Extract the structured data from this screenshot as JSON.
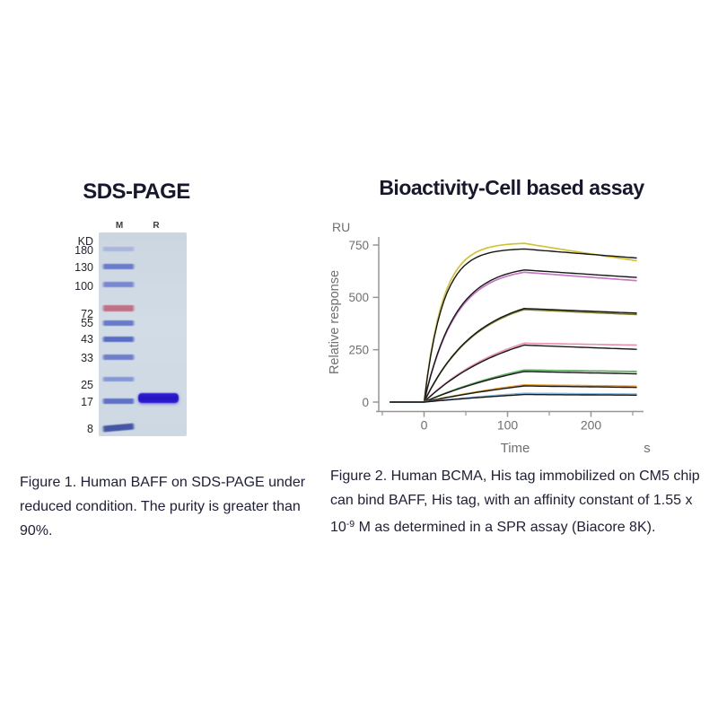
{
  "page": {
    "background": "#ffffff"
  },
  "figure1": {
    "title": "SDS-PAGE",
    "gel": {
      "unit_label": "KD",
      "lane_labels": [
        {
          "text": "M",
          "x": 133
        },
        {
          "text": "R",
          "x": 174
        }
      ],
      "marker_labels": [
        {
          "text": "KD",
          "y": 269
        },
        {
          "text": "180",
          "y": 279
        },
        {
          "text": "130",
          "y": 298
        },
        {
          "text": "100",
          "y": 319
        },
        {
          "text": "72",
          "y": 350
        },
        {
          "text": "55",
          "y": 360
        },
        {
          "text": "43",
          "y": 378
        },
        {
          "text": "33",
          "y": 399
        },
        {
          "text": "25",
          "y": 429
        },
        {
          "text": "17",
          "y": 448
        },
        {
          "text": "8",
          "y": 478
        }
      ],
      "ladder_bands": [
        {
          "kd": "180",
          "y": 277,
          "color": "#98a5da",
          "h": 5,
          "opacity": 0.65,
          "tilt": 0
        },
        {
          "kd": "130",
          "y": 297,
          "color": "#5f72c9",
          "h": 6,
          "opacity": 0.9,
          "tilt": 0
        },
        {
          "kd": "100",
          "y": 317,
          "color": "#6a7bce",
          "h": 5.5,
          "opacity": 0.85,
          "tilt": 0
        },
        {
          "kd": "72",
          "y": 343,
          "color": "#c0677f",
          "h": 7,
          "opacity": 0.92,
          "tilt": 0
        },
        {
          "kd": "55",
          "y": 360,
          "color": "#5d70c8",
          "h": 6,
          "opacity": 0.9,
          "tilt": 0
        },
        {
          "kd": "43",
          "y": 378,
          "color": "#5064c3",
          "h": 6.5,
          "opacity": 0.92,
          "tilt": 0
        },
        {
          "kd": "33",
          "y": 398,
          "color": "#5c6fc7",
          "h": 5.5,
          "opacity": 0.85,
          "tilt": 0
        },
        {
          "kd": "25",
          "y": 422,
          "color": "#6d80d0",
          "h": 5,
          "opacity": 0.75,
          "tilt": 0
        },
        {
          "kd": "17",
          "y": 447,
          "color": "#5366c5",
          "h": 5.5,
          "opacity": 0.9,
          "tilt": 0
        },
        {
          "kd": "8",
          "y": 476,
          "color": "#3e50a2",
          "h": 7,
          "opacity": 0.95,
          "tilt": -5
        }
      ],
      "sample_band": {
        "y": 443,
        "h": 11,
        "color": "#2f1fd8"
      }
    },
    "caption": {
      "line1": "Figure 1. Human BAFF on SDS-PAGE under",
      "line2": "reduced condition. The purity is greater than",
      "line3": "90%."
    }
  },
  "figure2": {
    "title": "Bioactivity-Cell based assay",
    "caption": {
      "line1": "Figure 2. Human BCMA, His tag immobilized on CM5 chip",
      "line2": "can bind BAFF, His tag, with an affinity constant of 1.55 x",
      "line3_pre": "10",
      "line3_sup": "-9",
      "line3_post": " M as determined in a SPR assay (Biacore 8K)."
    }
  },
  "chart_data": {
    "type": "line",
    "subtype": "spr-sensorgram",
    "title": "Bioactivity-Cell based assay",
    "xlabel": "Time",
    "x_unit": "s",
    "ylabel": "Relative response",
    "y_unit": "RU",
    "x_major_ticks": [
      0,
      100,
      200
    ],
    "x_minor_ticks": [
      -50,
      50,
      150,
      250
    ],
    "y_ticks": [
      0,
      250,
      500,
      750
    ],
    "xlim": [
      -41,
      255
    ],
    "ylim": [
      0,
      790
    ],
    "baseline_start_s": -41,
    "association_start_s": 0,
    "association_end_s": 120,
    "dissociation_end_s": 255,
    "grid": false,
    "legend": "none",
    "axis_color": "#969696",
    "label_color": "#6f6f6f",
    "fit_color": "#161616",
    "series": [
      {
        "name": "trace-1",
        "raw_color": "#d3c334",
        "peak_ru": 758,
        "end_ru": 675,
        "fit_peak_ru": 731,
        "fit_end_ru": 688,
        "k_assoc": 0.045
      },
      {
        "name": "trace-2",
        "raw_color": "#c678c6",
        "peak_ru": 620,
        "end_ru": 580,
        "fit_peak_ru": 631,
        "fit_end_ru": 595,
        "k_assoc": 0.027
      },
      {
        "name": "trace-3",
        "raw_color": "#7d7d27",
        "peak_ru": 442,
        "end_ru": 418,
        "fit_peak_ru": 447,
        "fit_end_ru": 425,
        "k_assoc": 0.016
      },
      {
        "name": "trace-4",
        "raw_color": "#ee92b4",
        "peak_ru": 281,
        "end_ru": 272,
        "fit_peak_ru": 272,
        "fit_end_ru": 252,
        "k_assoc": 0.0095
      },
      {
        "name": "trace-5",
        "raw_color": "#5fac63",
        "peak_ru": 153,
        "end_ru": 146,
        "fit_peak_ru": 146,
        "fit_end_ru": 135,
        "k_assoc": 0.0062
      },
      {
        "name": "trace-6",
        "raw_color": "#e6a23b",
        "peak_ru": 82,
        "end_ru": 76,
        "fit_peak_ru": 77,
        "fit_end_ru": 70,
        "k_assoc": 0.0048
      },
      {
        "name": "trace-7",
        "raw_color": "#8cb6d8",
        "peak_ru": 42,
        "end_ru": 38,
        "fit_peak_ru": 36,
        "fit_end_ru": 33,
        "k_assoc": 0.0038
      }
    ]
  }
}
